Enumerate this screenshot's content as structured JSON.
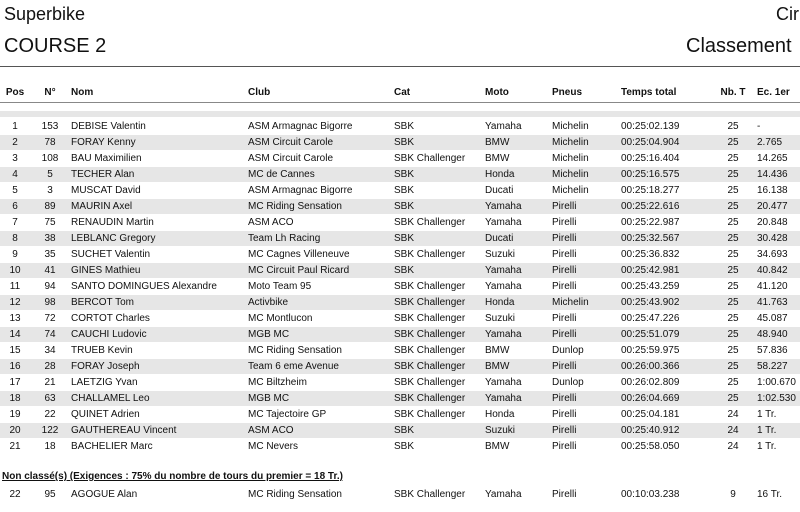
{
  "header": {
    "title": "Superbike",
    "subtitle": "COURSE 2",
    "right_top": "Cir",
    "right_bottom": "Classement"
  },
  "table": {
    "columns": [
      "Pos",
      "N°",
      "Nom",
      "Club",
      "Cat",
      "Moto",
      "Pneus",
      "Temps total",
      "Nb. T",
      "Ec. 1er"
    ],
    "rows": [
      [
        "1",
        "153",
        "DEBISE Valentin",
        "ASM Armagnac Bigorre",
        "SBK",
        "Yamaha",
        "Michelin",
        "00:25:02.139",
        "25",
        "-"
      ],
      [
        "2",
        "78",
        "FORAY Kenny",
        "ASM Circuit Carole",
        "SBK",
        "BMW",
        "Michelin",
        "00:25:04.904",
        "25",
        "2.765"
      ],
      [
        "3",
        "108",
        "BAU Maximilien",
        "ASM Circuit Carole",
        "SBK Challenger",
        "BMW",
        "Michelin",
        "00:25:16.404",
        "25",
        "14.265"
      ],
      [
        "4",
        "5",
        "TECHER Alan",
        "MC de Cannes",
        "SBK",
        "Honda",
        "Michelin",
        "00:25:16.575",
        "25",
        "14.436"
      ],
      [
        "5",
        "3",
        "MUSCAT David",
        "ASM Armagnac Bigorre",
        "SBK",
        "Ducati",
        "Michelin",
        "00:25:18.277",
        "25",
        "16.138"
      ],
      [
        "6",
        "89",
        "MAURIN Axel",
        "MC Riding Sensation",
        "SBK",
        "Yamaha",
        "Pirelli",
        "00:25:22.616",
        "25",
        "20.477"
      ],
      [
        "7",
        "75",
        "RENAUDIN Martin",
        "ASM ACO",
        "SBK Challenger",
        "Yamaha",
        "Pirelli",
        "00:25:22.987",
        "25",
        "20.848"
      ],
      [
        "8",
        "38",
        "LEBLANC Gregory",
        "Team Lh Racing",
        "SBK",
        "Ducati",
        "Pirelli",
        "00:25:32.567",
        "25",
        "30.428"
      ],
      [
        "9",
        "35",
        "SUCHET Valentin",
        "MC Cagnes Villeneuve",
        "SBK Challenger",
        "Suzuki",
        "Pirelli",
        "00:25:36.832",
        "25",
        "34.693"
      ],
      [
        "10",
        "41",
        "GINES Mathieu",
        "MC Circuit Paul Ricard",
        "SBK",
        "Yamaha",
        "Pirelli",
        "00:25:42.981",
        "25",
        "40.842"
      ],
      [
        "11",
        "94",
        "SANTO DOMINGUES Alexandre",
        "Moto Team 95",
        "SBK Challenger",
        "Yamaha",
        "Pirelli",
        "00:25:43.259",
        "25",
        "41.120"
      ],
      [
        "12",
        "98",
        "BERCOT Tom",
        "Activbike",
        "SBK Challenger",
        "Honda",
        "Michelin",
        "00:25:43.902",
        "25",
        "41.763"
      ],
      [
        "13",
        "72",
        "CORTOT Charles",
        "MC Montlucon",
        "SBK Challenger",
        "Suzuki",
        "Pirelli",
        "00:25:47.226",
        "25",
        "45.087"
      ],
      [
        "14",
        "74",
        "CAUCHI Ludovic",
        "MGB MC",
        "SBK Challenger",
        "Yamaha",
        "Pirelli",
        "00:25:51.079",
        "25",
        "48.940"
      ],
      [
        "15",
        "34",
        "TRUEB Kevin",
        "MC Riding Sensation",
        "SBK Challenger",
        "BMW",
        "Dunlop",
        "00:25:59.975",
        "25",
        "57.836"
      ],
      [
        "16",
        "28",
        "FORAY Joseph",
        "Team 6 eme Avenue",
        "SBK Challenger",
        "BMW",
        "Pirelli",
        "00:26:00.366",
        "25",
        "58.227"
      ],
      [
        "17",
        "21",
        "LAETZIG Yvan",
        "MC Biltzheim",
        "SBK Challenger",
        "Yamaha",
        "Dunlop",
        "00:26:02.809",
        "25",
        "1:00.670"
      ],
      [
        "18",
        "63",
        "CHALLAMEL Leo",
        "MGB MC",
        "SBK Challenger",
        "Yamaha",
        "Pirelli",
        "00:26:04.669",
        "25",
        "1:02.530"
      ],
      [
        "19",
        "22",
        "QUINET Adrien",
        "MC Tajectoire GP",
        "SBK Challenger",
        "Honda",
        "Pirelli",
        "00:25:04.181",
        "24",
        "1 Tr."
      ],
      [
        "20",
        "122",
        "GAUTHEREAU Vincent",
        "ASM ACO",
        "SBK",
        "Suzuki",
        "Pirelli",
        "00:25:40.912",
        "24",
        "1 Tr."
      ],
      [
        "21",
        "18",
        "BACHELIER Marc",
        "MC Nevers",
        "SBK",
        "BMW",
        "Pirelli",
        "00:25:58.050",
        "24",
        "1 Tr."
      ]
    ],
    "non_classified_title": "Non classé(s) (Exigences : 75% du nombre de tours du premier = 18 Tr.)",
    "non_classified_rows": [
      [
        "22",
        "95",
        "AGOGUE Alan",
        "MC Riding Sensation",
        "SBK Challenger",
        "Yamaha",
        "Pirelli",
        "00:10:03.238",
        "9",
        "16 Tr."
      ]
    ]
  }
}
